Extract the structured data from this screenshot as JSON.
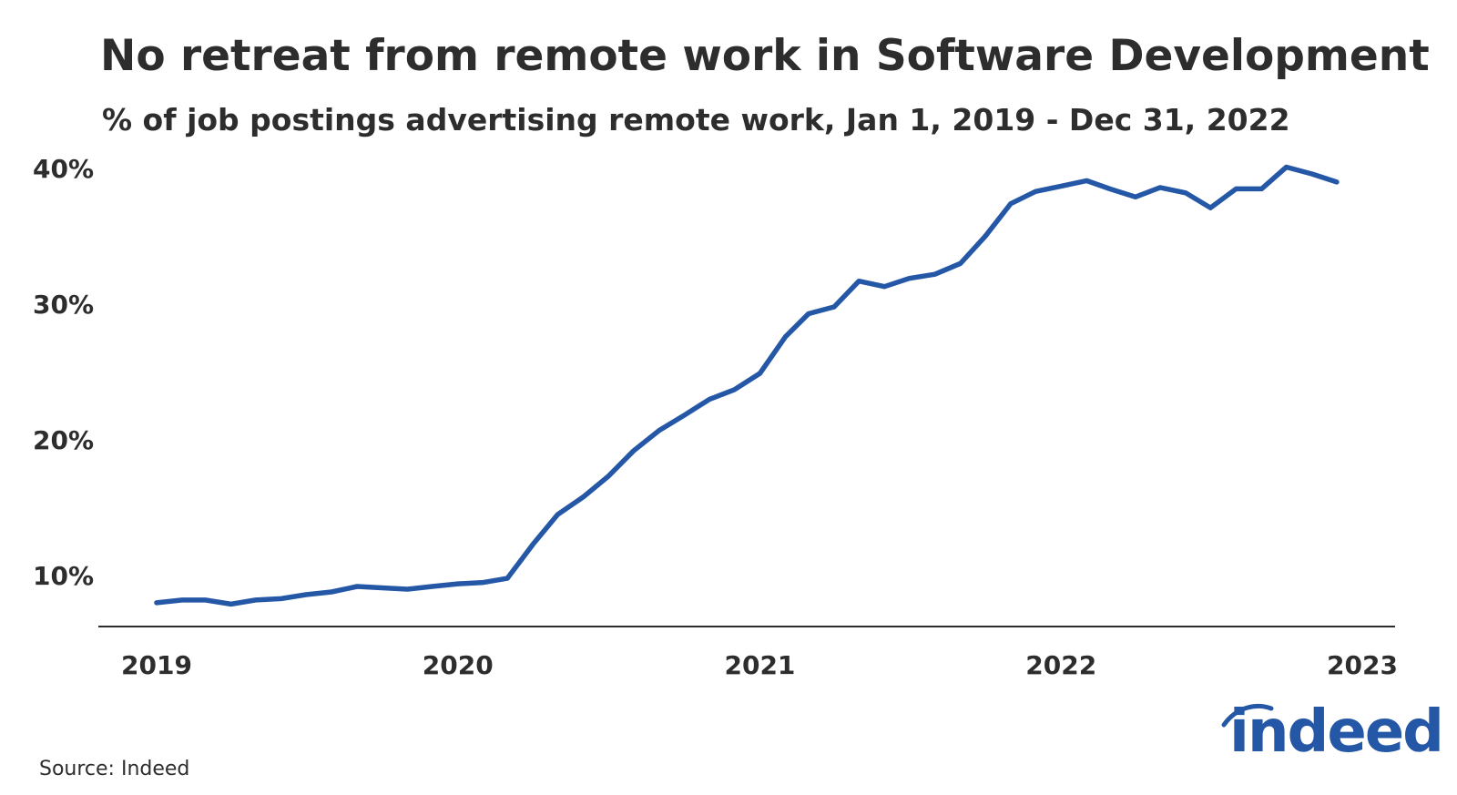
{
  "title": "No retreat from remote work in Software Development",
  "subtitle": "% of job postings advertising remote work, Jan 1, 2019 - Dec 31, 2022",
  "source": "Source: Indeed",
  "logo_text": "indeed",
  "colors": {
    "line": "#2557a7",
    "text": "#2d2d2d",
    "axis": "#2d2d2d",
    "brand": "#2557a7"
  },
  "chart_data": {
    "type": "line",
    "title": "No retreat from remote work in Software Development",
    "subtitle": "% of job postings advertising remote work, Jan 1, 2019 - Dec 31, 2022",
    "xlabel": "",
    "ylabel": "",
    "xlim": [
      "2019-01-01",
      "2023-01-01"
    ],
    "ylim": [
      6.25,
      40
    ],
    "x_ticks": [
      "2019",
      "2020",
      "2021",
      "2022",
      "2023"
    ],
    "y_ticks": [
      "10%",
      "20%",
      "30%",
      "40%"
    ],
    "grid": false,
    "legend": "none",
    "series": [
      {
        "x": [
          "2019-01-01",
          "2019-02-01",
          "2019-03-01",
          "2019-04-01",
          "2019-05-01",
          "2019-06-01",
          "2019-07-01",
          "2019-08-01",
          "2019-09-01",
          "2019-10-01",
          "2019-11-01",
          "2019-12-01",
          "2020-01-01",
          "2020-02-01",
          "2020-03-01",
          "2020-04-01",
          "2020-05-01",
          "2020-06-01",
          "2020-07-01",
          "2020-08-01",
          "2020-09-01",
          "2020-10-01",
          "2020-11-01",
          "2020-12-01",
          "2021-01-01",
          "2021-02-01",
          "2021-03-01",
          "2021-04-01",
          "2021-05-01",
          "2021-06-01",
          "2021-07-01",
          "2021-08-01",
          "2021-09-01",
          "2021-10-01",
          "2021-11-01",
          "2021-12-01",
          "2022-01-01",
          "2022-02-01",
          "2022-03-01",
          "2022-04-01",
          "2022-05-01",
          "2022-06-01",
          "2022-07-01",
          "2022-08-01",
          "2022-09-01",
          "2022-10-01",
          "2022-11-01",
          "2022-12-01"
        ],
        "values": [
          8.0,
          8.2,
          8.2,
          7.9,
          8.2,
          8.3,
          8.6,
          8.8,
          9.2,
          9.1,
          9.0,
          9.2,
          9.4,
          9.5,
          9.8,
          12.3,
          14.5,
          15.8,
          17.3,
          19.2,
          20.7,
          21.8,
          23.0,
          23.7,
          24.9,
          27.6,
          29.3,
          29.8,
          31.7,
          31.3,
          31.9,
          32.2,
          33.0,
          35.0,
          37.4,
          38.3,
          38.7,
          39.1,
          38.5,
          37.9,
          38.6,
          38.2,
          37.1,
          38.5,
          38.5,
          40.1,
          39.6,
          39.0
        ]
      }
    ]
  }
}
